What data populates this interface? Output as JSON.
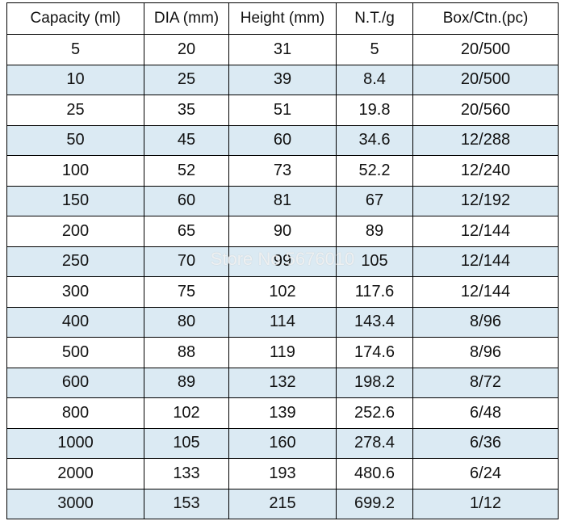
{
  "table": {
    "header": [
      "Capacity (ml)",
      "DIA (mm)",
      "Height (mm)",
      "N.T./g",
      "Box/Ctn.(pc)"
    ],
    "rows": [
      [
        "5",
        "20",
        "31",
        "5",
        "20/500"
      ],
      [
        "10",
        "25",
        "39",
        "8.4",
        "20/500"
      ],
      [
        "25",
        "35",
        "51",
        "19.8",
        "20/560"
      ],
      [
        "50",
        "45",
        "60",
        "34.6",
        "12/288"
      ],
      [
        "100",
        "52",
        "73",
        "52.2",
        "12/240"
      ],
      [
        "150",
        "60",
        "81",
        "67",
        "12/192"
      ],
      [
        "200",
        "65",
        "90",
        "89",
        "12/144"
      ],
      [
        "250",
        "70",
        "99",
        "105",
        "12/144"
      ],
      [
        "300",
        "75",
        "102",
        "117.6",
        "12/144"
      ],
      [
        "400",
        "80",
        "114",
        "143.4",
        "8/96"
      ],
      [
        "500",
        "88",
        "119",
        "174.6",
        "8/96"
      ],
      [
        "600",
        "89",
        "132",
        "198.2",
        "8/72"
      ],
      [
        "800",
        "102",
        "139",
        "252.6",
        "6/48"
      ],
      [
        "1000",
        "105",
        "160",
        "278.4",
        "6/36"
      ],
      [
        "2000",
        "133",
        "193",
        "480.6",
        "6/24"
      ],
      [
        "3000",
        "153",
        "215",
        "699.2",
        "1/12"
      ]
    ]
  },
  "watermark": "Store No.5676010"
}
